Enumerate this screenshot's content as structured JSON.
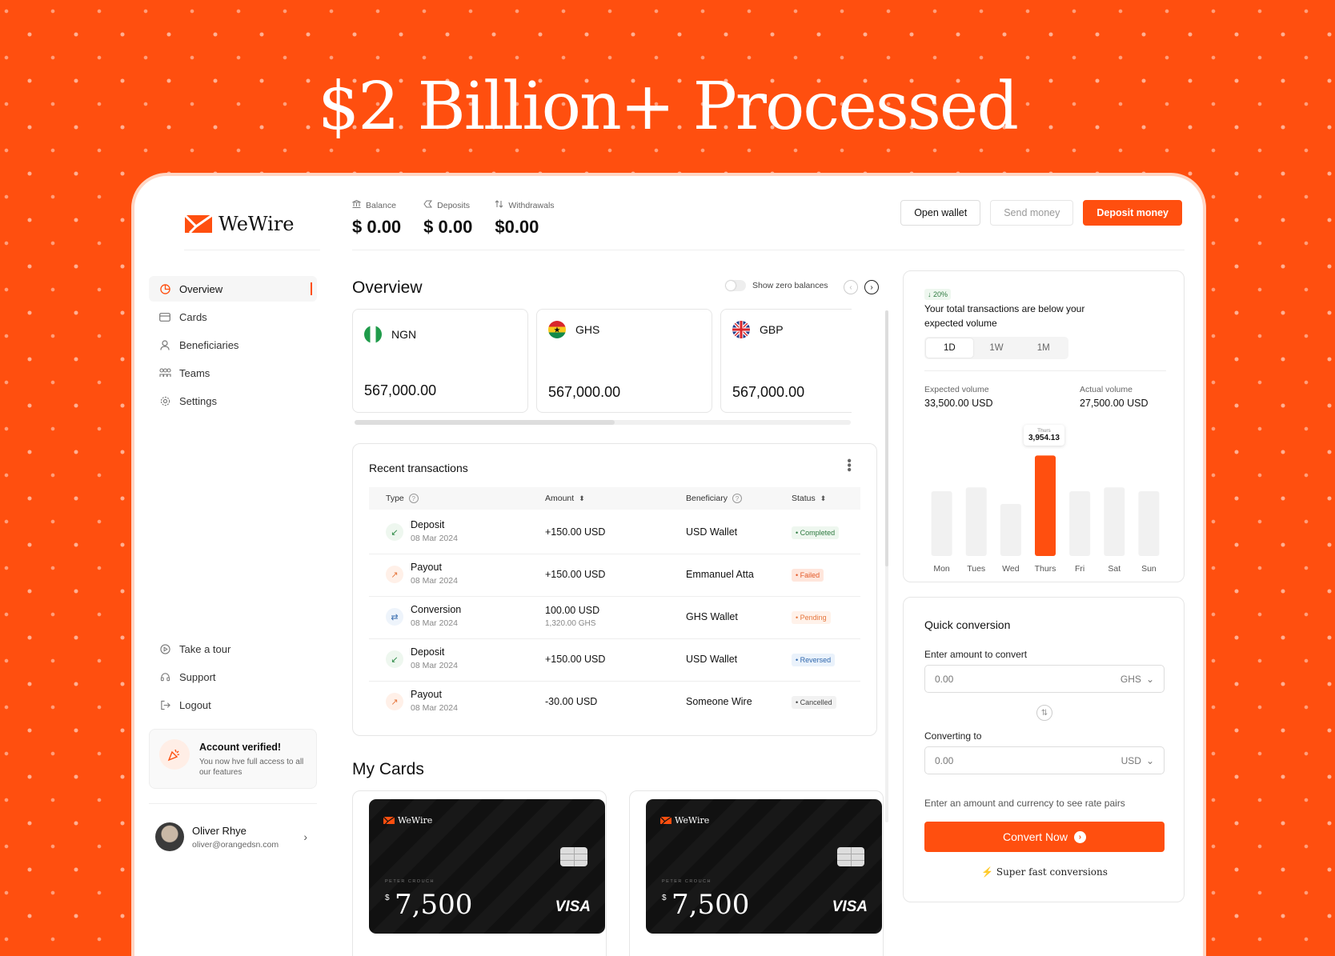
{
  "hero": {
    "title": "$2 Billion+ Processed"
  },
  "brand": {
    "name": "WeWire",
    "accent": "#FF4F0F"
  },
  "nav": {
    "items": [
      {
        "label": "Overview",
        "icon": "pie-chart-icon",
        "active": true
      },
      {
        "label": "Cards",
        "icon": "credit-card-icon"
      },
      {
        "label": "Beneficiaries",
        "icon": "user-icon"
      },
      {
        "label": "Teams",
        "icon": "team-icon"
      },
      {
        "label": "Settings",
        "icon": "gear-icon"
      }
    ],
    "secondary": [
      {
        "label": "Take a tour",
        "icon": "play-circle-icon"
      },
      {
        "label": "Support",
        "icon": "headset-icon"
      },
      {
        "label": "Logout",
        "icon": "logout-icon"
      }
    ]
  },
  "verify": {
    "title": "Account verified!",
    "desc": "You now hve full access to all our features"
  },
  "user": {
    "name": "Oliver Rhye",
    "email": "oliver@orangedsn.com"
  },
  "stats": [
    {
      "label": "Balance",
      "value": "$ 0.00",
      "icon": "bank-icon"
    },
    {
      "label": "Deposits",
      "value": "$ 0.00",
      "icon": "deposit-icon"
    },
    {
      "label": "Withdrawals",
      "value": "$0.00",
      "icon": "arrows-updown-icon"
    }
  ],
  "actions": {
    "open_wallet": "Open wallet",
    "send_money": "Send money",
    "deposit_money": "Deposit money"
  },
  "overview": {
    "title": "Overview",
    "zero_balances": "Show zero balances",
    "currencies": [
      {
        "code": "NGN",
        "value": "567,000.00"
      },
      {
        "code": "GHS",
        "value": "567,000.00"
      },
      {
        "code": "GBP",
        "value": "567,000.00"
      }
    ]
  },
  "transactions": {
    "title": "Recent transactions",
    "headers": {
      "type": "Type",
      "amount": "Amount",
      "beneficiary": "Beneficiary",
      "status": "Status"
    },
    "rows": [
      {
        "type": "Deposit",
        "date": "08 Mar 2024",
        "amount": "+150.00 USD",
        "amount2": "",
        "beneficiary": "USD Wallet",
        "status": "Completed",
        "kind": "in",
        "badge": "completed"
      },
      {
        "type": "Payout",
        "date": "08 Mar 2024",
        "amount": "+150.00 USD",
        "amount2": "",
        "beneficiary": "Emmanuel Atta",
        "status": "Failed",
        "kind": "out",
        "badge": "failed"
      },
      {
        "type": "Conversion",
        "date": "08 Mar 2024",
        "amount": "100.00 USD",
        "amount2": "1,320.00 GHS",
        "beneficiary": "GHS Wallet",
        "status": "Pending",
        "kind": "cv",
        "badge": "pending"
      },
      {
        "type": "Deposit",
        "date": "08 Mar 2024",
        "amount": "+150.00 USD",
        "amount2": "",
        "beneficiary": "USD Wallet",
        "status": "Reversed",
        "kind": "in",
        "badge": "reversed"
      },
      {
        "type": "Payout",
        "date": "08 Mar 2024",
        "amount": "-30.00 USD",
        "amount2": "",
        "beneficiary": "Someone Wire",
        "status": "Cancelled",
        "kind": "out",
        "badge": "cancelled"
      }
    ]
  },
  "cards": {
    "title": "My Cards",
    "items": [
      {
        "brand": "WeWire",
        "holder": "PETER CROUCH",
        "currency": "$",
        "amount": "7,500",
        "network": "VISA"
      },
      {
        "brand": "WeWire",
        "holder": "PETER CROUCH",
        "currency": "$",
        "amount": "7,500",
        "network": "VISA"
      }
    ]
  },
  "volume": {
    "pill": "↓ 20%",
    "message": "Your total transactions are below your expected volume",
    "ranges": [
      "1D",
      "1W",
      "1M"
    ],
    "expected_label": "Expected volume",
    "expected_value": "33,500.00 USD",
    "actual_label": "Actual volume",
    "actual_value": "27,500.00 USD",
    "tooltip_label": "Thurs",
    "tooltip_value": "3,954.13"
  },
  "chart_data": {
    "type": "bar",
    "categories": [
      "Mon",
      "Tues",
      "Wed",
      "Thurs",
      "Fri",
      "Sat",
      "Sun"
    ],
    "values": [
      2550,
      2700,
      2050,
      3954.13,
      2550,
      2700,
      2550
    ],
    "highlight": "Thurs",
    "ylim": [
      0,
      4000
    ],
    "grid": false
  },
  "conversion": {
    "title": "Quick conversion",
    "from_label": "Enter amount to convert",
    "from_placeholder": "0.00",
    "from_currency": "GHS",
    "to_label": "Converting to",
    "to_placeholder": "0.00",
    "to_currency": "USD",
    "hint": "Enter an amount and currency to see rate pairs",
    "button": "Convert Now",
    "footer": "Super fast conversions"
  }
}
